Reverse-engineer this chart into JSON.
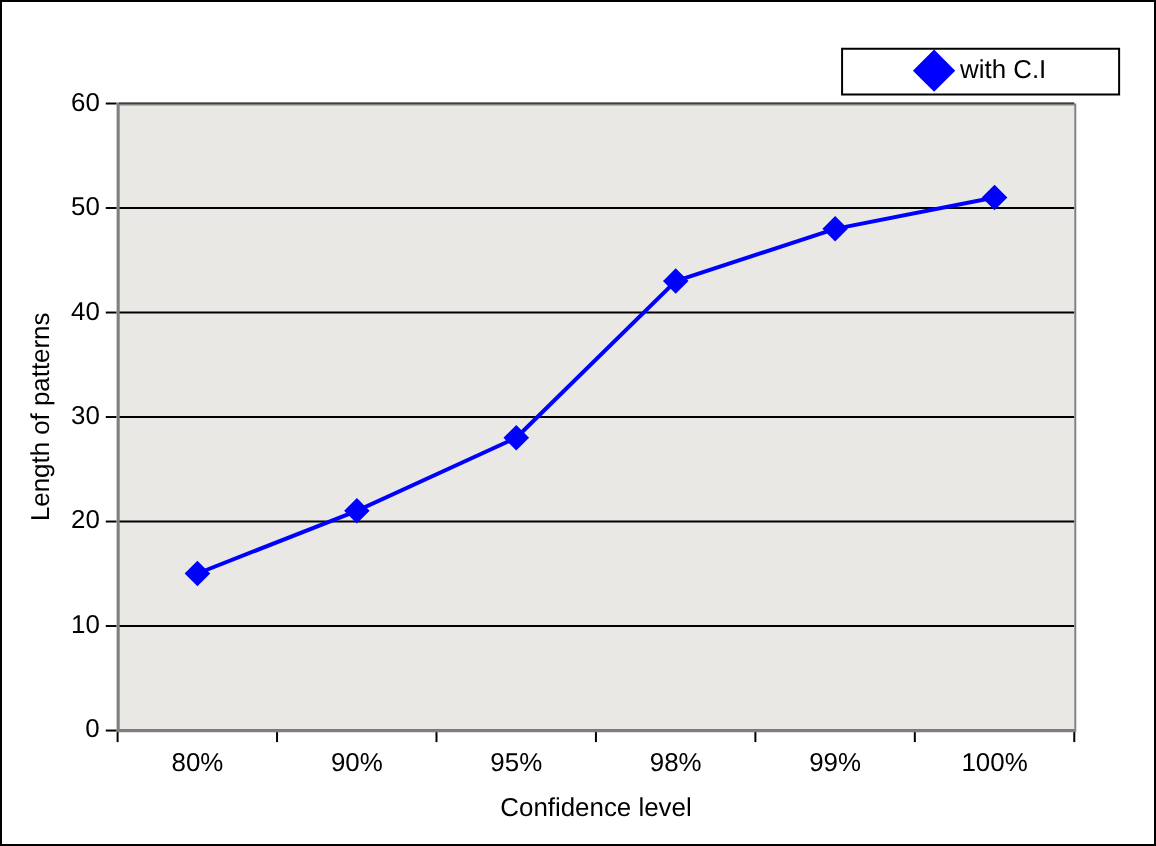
{
  "chart_data": {
    "type": "line",
    "xlabel": "Confidence level",
    "ylabel": "Length of patterns",
    "categories": [
      "80%",
      "90%",
      "95%",
      "98%",
      "99%",
      "100%"
    ],
    "series": [
      {
        "name": "with C.I",
        "color": "#0000ff",
        "values": [
          15,
          21,
          28,
          43,
          48,
          51
        ]
      }
    ],
    "ylim": [
      0,
      60
    ],
    "yticks": [
      0,
      10,
      20,
      30,
      40,
      50,
      60
    ],
    "grid": "y",
    "legend": "top right",
    "marker": "diamond",
    "line_style": "solid"
  }
}
